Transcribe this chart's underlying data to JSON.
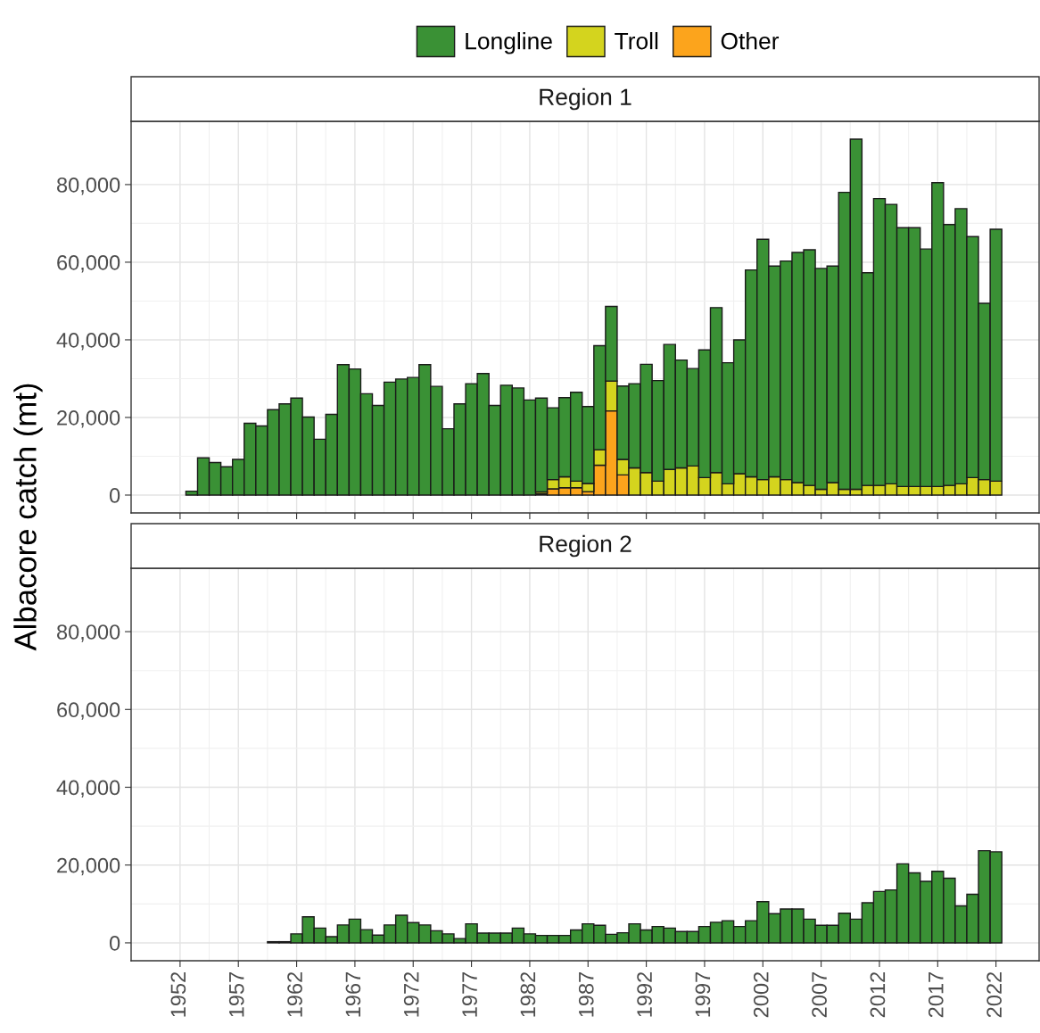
{
  "chart_data": [
    {
      "type": "bar",
      "stacked": true,
      "title": "Region 1",
      "ylabel": "Albacore catch (mt)",
      "legend": "top",
      "grid": true,
      "tick_labels": "y",
      "x": [
        1953,
        1954,
        1955,
        1956,
        1957,
        1958,
        1959,
        1960,
        1961,
        1962,
        1963,
        1964,
        1965,
        1966,
        1967,
        1968,
        1969,
        1970,
        1971,
        1972,
        1973,
        1974,
        1975,
        1976,
        1977,
        1978,
        1979,
        1980,
        1981,
        1982,
        1983,
        1984,
        1985,
        1986,
        1987,
        1988,
        1989,
        1990,
        1991,
        1992,
        1993,
        1994,
        1995,
        1996,
        1997,
        1998,
        1999,
        2000,
        2001,
        2002,
        2003,
        2004,
        2005,
        2006,
        2007,
        2008,
        2009,
        2010,
        2011,
        2012,
        2013,
        2014,
        2015,
        2016,
        2017,
        2018,
        2019,
        2020,
        2021,
        2022
      ],
      "xlim": [
        1947.8,
        2025.7
      ],
      "xticks": [
        1952,
        1957,
        1962,
        1967,
        1972,
        1977,
        1982,
        1987,
        1992,
        1997,
        2002,
        2007,
        2012,
        2017,
        2022
      ],
      "ylim": [
        -4600,
        96300
      ],
      "yticks": [
        {
          "value": 0,
          "label": "0"
        },
        {
          "value": 20000,
          "label": "20,000"
        },
        {
          "value": 40000,
          "label": "40,000"
        },
        {
          "value": 60000,
          "label": "60,000"
        },
        {
          "value": 80000,
          "label": "80,000"
        }
      ],
      "series": [
        {
          "name": "Other",
          "color": "#fca41c",
          "values": [
            null,
            null,
            null,
            null,
            null,
            null,
            null,
            null,
            null,
            null,
            null,
            null,
            null,
            null,
            null,
            null,
            null,
            null,
            null,
            null,
            null,
            null,
            null,
            null,
            null,
            null,
            null,
            null,
            null,
            null,
            300,
            1600,
            1900,
            1900,
            900,
            7700,
            21700,
            5200,
            null,
            null,
            null,
            null,
            null,
            null,
            null,
            null,
            null,
            null,
            null,
            null,
            null,
            null,
            null,
            null,
            null,
            null,
            null,
            null,
            null,
            null,
            null,
            null,
            null,
            null,
            null,
            null,
            null,
            null,
            null,
            null
          ]
        },
        {
          "name": "Troll",
          "color": "#d4d41e",
          "values": [
            null,
            null,
            null,
            null,
            null,
            null,
            null,
            null,
            null,
            null,
            null,
            null,
            null,
            null,
            null,
            null,
            null,
            null,
            null,
            null,
            null,
            null,
            null,
            null,
            null,
            null,
            null,
            null,
            null,
            null,
            500,
            2400,
            2800,
            1700,
            2100,
            4000,
            7700,
            4000,
            7000,
            5800,
            3600,
            6600,
            7000,
            7500,
            4500,
            5800,
            2900,
            5500,
            4700,
            4000,
            4700,
            4000,
            3200,
            2500,
            1500,
            3200,
            1500,
            1500,
            2500,
            2500,
            2900,
            2200,
            2200,
            2200,
            2200,
            2500,
            2900,
            4500,
            4000,
            3600
          ]
        },
        {
          "name": "Longline",
          "color": "#3a9135",
          "values": [
            1000,
            9600,
            8400,
            7300,
            9200,
            18500,
            17800,
            22000,
            23500,
            25000,
            20100,
            14400,
            20800,
            33600,
            32500,
            26100,
            23100,
            29100,
            29900,
            30300,
            33600,
            28000,
            17100,
            23500,
            28700,
            31300,
            23100,
            28300,
            27600,
            24500,
            24200,
            18500,
            20400,
            22900,
            19800,
            26800,
            19200,
            18900,
            21700,
            27900,
            25900,
            32200,
            27800,
            25100,
            32900,
            42500,
            31200,
            34500,
            53300,
            61900,
            54300,
            56300,
            59300,
            60700,
            56900,
            55800,
            76500,
            90200,
            54800,
            73900,
            72000,
            66700,
            66700,
            61200,
            78300,
            67200,
            70900,
            62100,
            45400,
            64900
          ]
        }
      ]
    },
    {
      "type": "bar",
      "stacked": true,
      "title": "Region 2",
      "grid": true,
      "x": [
        1960,
        1961,
        1962,
        1963,
        1964,
        1965,
        1966,
        1967,
        1968,
        1969,
        1970,
        1971,
        1972,
        1973,
        1974,
        1975,
        1976,
        1977,
        1978,
        1979,
        1980,
        1981,
        1982,
        1983,
        1984,
        1985,
        1986,
        1987,
        1988,
        1989,
        1990,
        1991,
        1992,
        1993,
        1994,
        1995,
        1996,
        1997,
        1998,
        1999,
        2000,
        2001,
        2002,
        2003,
        2004,
        2005,
        2006,
        2007,
        2008,
        2009,
        2010,
        2011,
        2012,
        2013,
        2014,
        2015,
        2016,
        2017,
        2018,
        2019,
        2020,
        2021,
        2022
      ],
      "xlim": [
        1947.8,
        2025.7
      ],
      "xticks": [
        1952,
        1957,
        1962,
        1967,
        1972,
        1977,
        1982,
        1987,
        1992,
        1997,
        2002,
        2007,
        2012,
        2017,
        2022
      ],
      "ylim": [
        -4600,
        96300
      ],
      "yticks": [
        {
          "value": 0,
          "label": "0"
        },
        {
          "value": 20000,
          "label": "20,000"
        },
        {
          "value": 40000,
          "label": "40,000"
        },
        {
          "value": 60000,
          "label": "60,000"
        },
        {
          "value": 80000,
          "label": "80,000"
        }
      ],
      "series": [
        {
          "color": "#3a9135",
          "values": [
            300,
            300,
            2300,
            6700,
            3800,
            1600,
            4600,
            6100,
            3400,
            2000,
            4600,
            7100,
            5200,
            4600,
            3100,
            2300,
            1100,
            4900,
            2500,
            2500,
            2500,
            3800,
            2300,
            1900,
            1900,
            1900,
            3300,
            4900,
            4500,
            2200,
            2600,
            4900,
            3300,
            4200,
            3800,
            2900,
            2900,
            4200,
            5300,
            5700,
            4200,
            5700,
            10600,
            7500,
            8700,
            8700,
            6100,
            4500,
            4500,
            7600,
            6100,
            10300,
            13200,
            13600,
            20300,
            18000,
            15800,
            18400,
            16600,
            9500,
            12500,
            23700,
            23400
          ]
        }
      ]
    }
  ]
}
